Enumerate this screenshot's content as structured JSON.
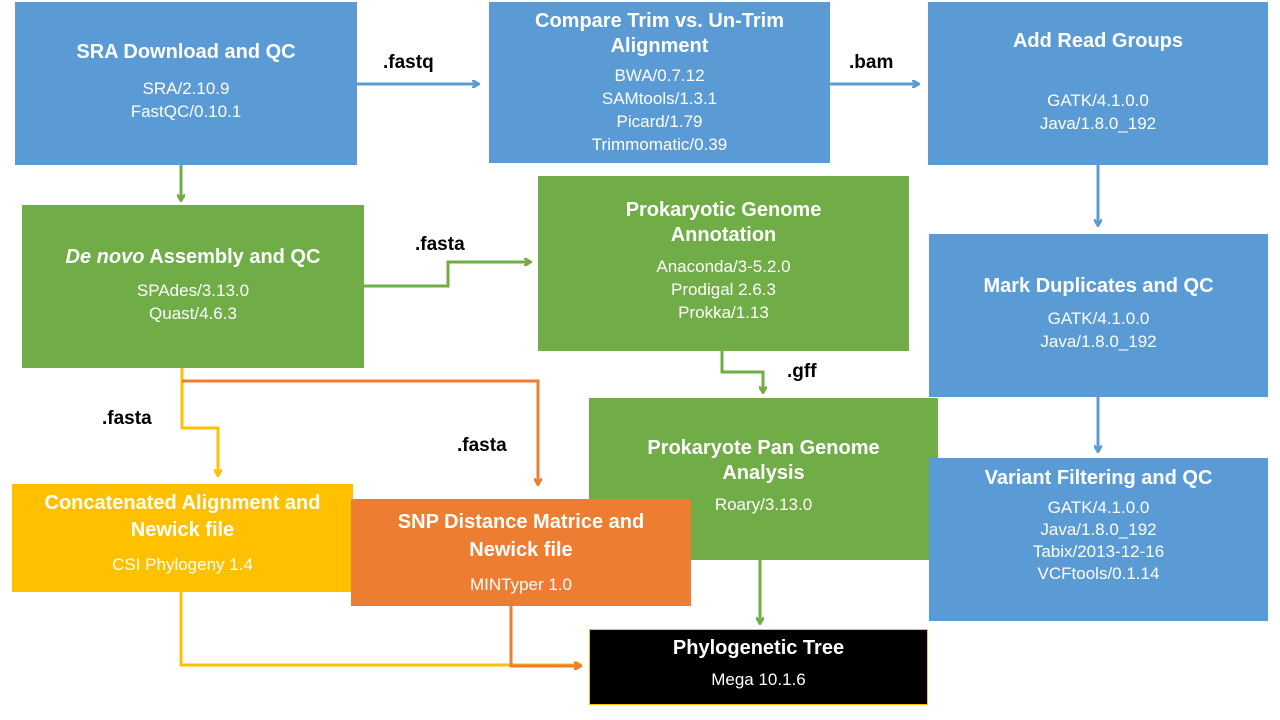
{
  "nodes": {
    "sra": {
      "title": "SRA Download and QC",
      "tools": [
        "SRA/2.10.9",
        "FastQC/0.10.1"
      ]
    },
    "compare": {
      "title": "Compare Trim vs. Un-Trim Alignment",
      "tools": [
        "BWA/0.7.12",
        "SAMtools/1.3.1",
        "Picard/1.79",
        "Trimmomatic/0.39"
      ]
    },
    "readgroups": {
      "title": "Add Read Groups",
      "tools": [
        "GATK/4.1.0.0",
        "Java/1.8.0_192"
      ]
    },
    "denovo": {
      "title_italic": "De novo",
      "title_rest": " Assembly and QC",
      "tools": [
        "SPAdes/3.13.0",
        "Quast/4.6.3"
      ]
    },
    "annotation": {
      "title": "Prokaryotic Genome Annotation",
      "tools": [
        "Anaconda/3-5.2.0",
        "Prodigal 2.6.3",
        "Prokka/1.13"
      ]
    },
    "markdup": {
      "title": "Mark Duplicates and QC",
      "tools": [
        "GATK/4.1.0.0",
        "Java/1.8.0_192"
      ]
    },
    "pangenome": {
      "title": "Prokaryote Pan Genome Analysis",
      "tools": [
        "Roary/3.13.0"
      ]
    },
    "variant": {
      "title": "Variant Filtering and QC",
      "tools": [
        "GATK/4.1.0.0",
        "Java/1.8.0_192",
        "Tabix/2013-12-16",
        "VCFtools/0.1.14"
      ]
    },
    "concat": {
      "title": "Concatenated Alignment and Newick file",
      "tools": [
        "CSI Phylogeny 1.4"
      ]
    },
    "snp": {
      "title": "SNP Distance Matrice and Newick file",
      "tools": [
        "MINTyper 1.0"
      ]
    },
    "tree": {
      "title": "Phylogenetic Tree",
      "tools": [
        "Mega 10.1.6"
      ]
    }
  },
  "edge_labels": {
    "fastq": ".fastq",
    "bam": ".bam",
    "fasta_annotation": ".fasta",
    "gff": ".gff",
    "fasta_concat": ".fasta",
    "fasta_snp": ".fasta"
  },
  "colors": {
    "blue": "#5b9bd5",
    "green": "#70ad47",
    "yellow": "#ffc000",
    "orange": "#ed7d31",
    "black": "#000000",
    "text": "#ffffff"
  }
}
